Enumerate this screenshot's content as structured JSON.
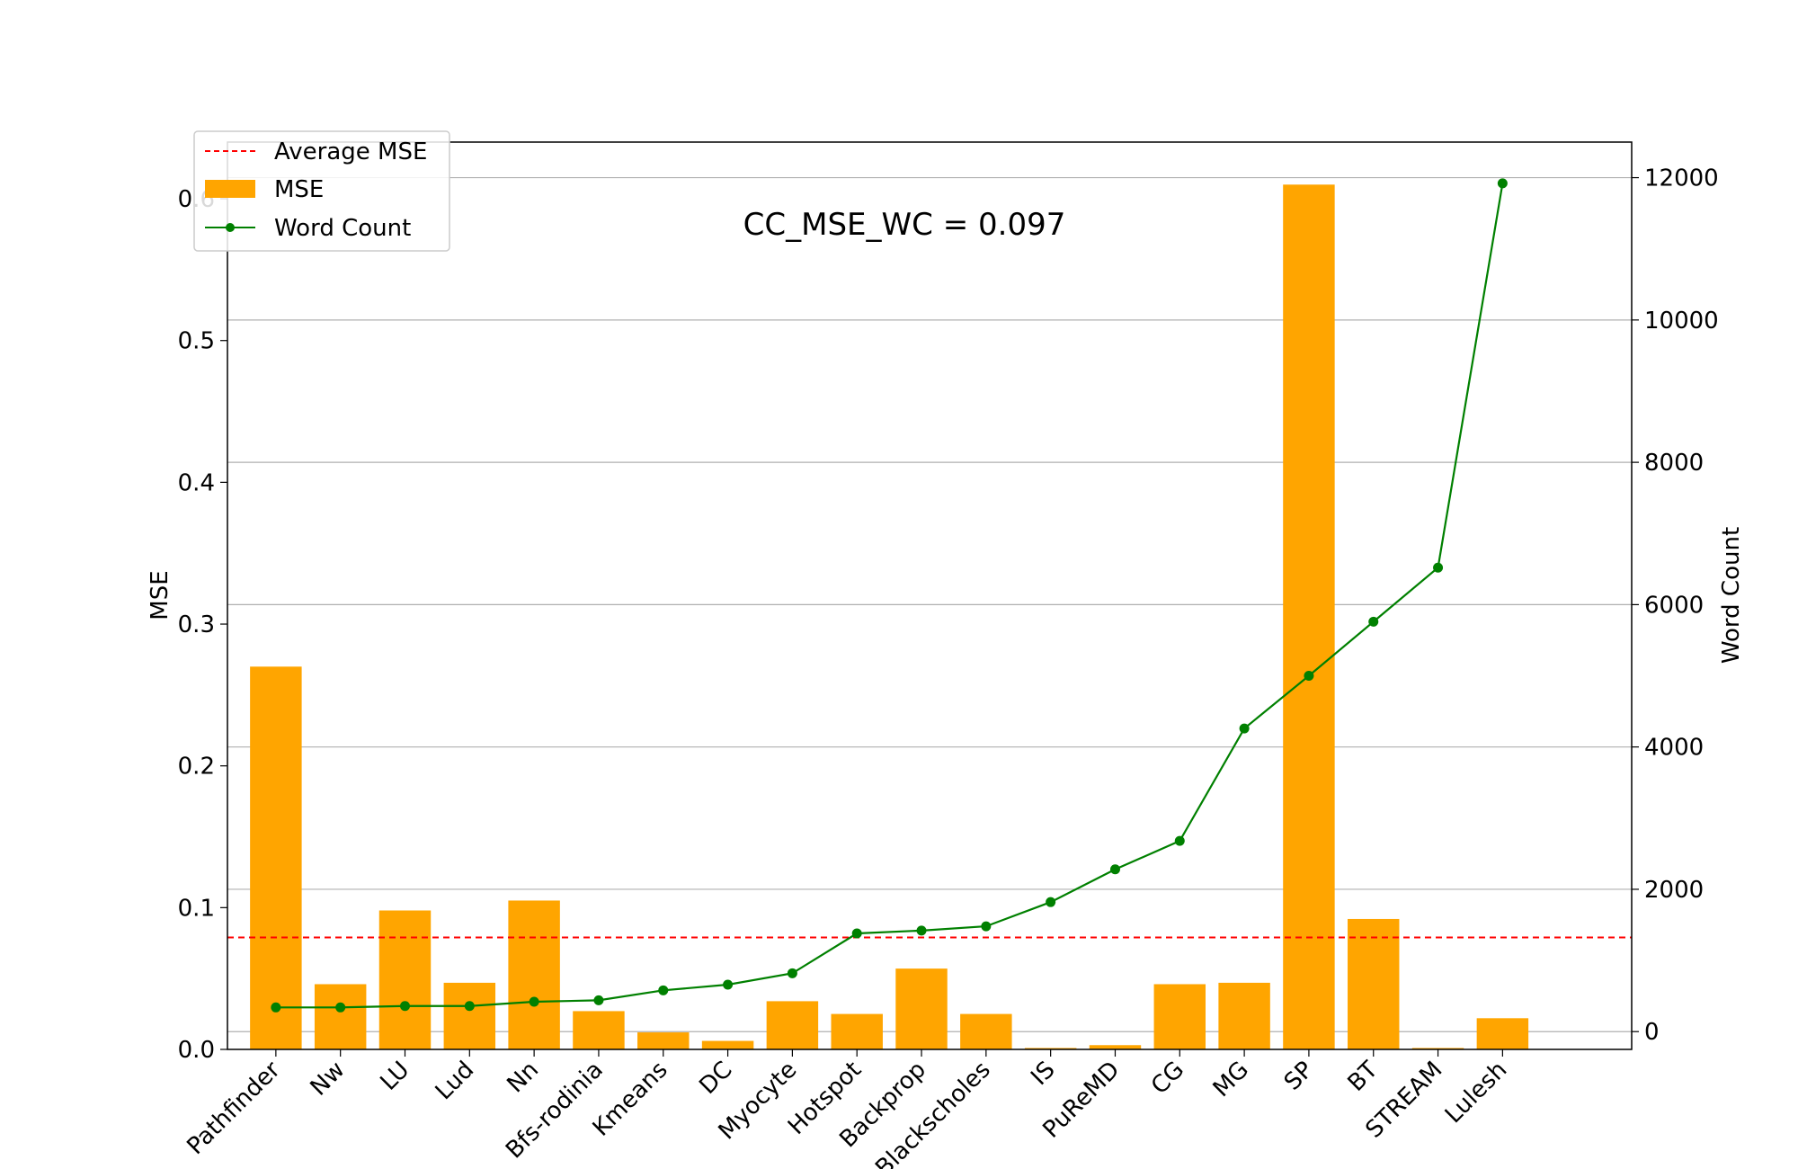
{
  "chart_data": {
    "type": "bar",
    "categories": [
      "Pathfinder",
      "Nw",
      "LU",
      "Lud",
      "Nn",
      "Bfs-rodinia",
      "Kmeans",
      "DC",
      "Myocyte",
      "Hotspot",
      "Backprop",
      "Blackscholes",
      "IS",
      "PuReMD",
      "CG",
      "MG",
      "SP",
      "BT",
      "STREAM",
      "Lulesh"
    ],
    "series": [
      {
        "name": "MSE",
        "type": "bar",
        "axis": "left",
        "color": "#FFA500",
        "values": [
          0.27,
          0.046,
          0.098,
          0.047,
          0.105,
          0.027,
          0.012,
          0.006,
          0.034,
          0.025,
          0.057,
          0.025,
          0.001,
          0.003,
          0.046,
          0.047,
          0.61,
          0.092,
          0.001,
          0.022
        ]
      },
      {
        "name": "Word Count",
        "type": "line",
        "axis": "right",
        "color": "#008000",
        "values": [
          340,
          340,
          360,
          360,
          420,
          440,
          580,
          660,
          820,
          1380,
          1420,
          1480,
          1820,
          2280,
          2680,
          4260,
          5000,
          5760,
          6520,
          11920
        ]
      }
    ],
    "reference_lines": [
      {
        "name": "Average MSE",
        "axis": "left",
        "value": 0.079,
        "color": "#FF0000",
        "style": "dashed"
      }
    ],
    "annotation": "CC_MSE_WC = 0.097",
    "ylabel": "MSE",
    "y2label": "Word Count",
    "ylim": [
      0,
      0.64
    ],
    "y2lim": [
      -250,
      12500
    ],
    "yticks": [
      "0.0",
      "0.1",
      "0.2",
      "0.3",
      "0.4",
      "0.5",
      "0.6"
    ],
    "y2ticks": [
      "0",
      "2000",
      "4000",
      "6000",
      "8000",
      "10000",
      "12000"
    ],
    "grid": "horizontal, right axis",
    "legend_position": "top-left",
    "legend": [
      "Average MSE",
      "MSE",
      "Word Count"
    ]
  }
}
